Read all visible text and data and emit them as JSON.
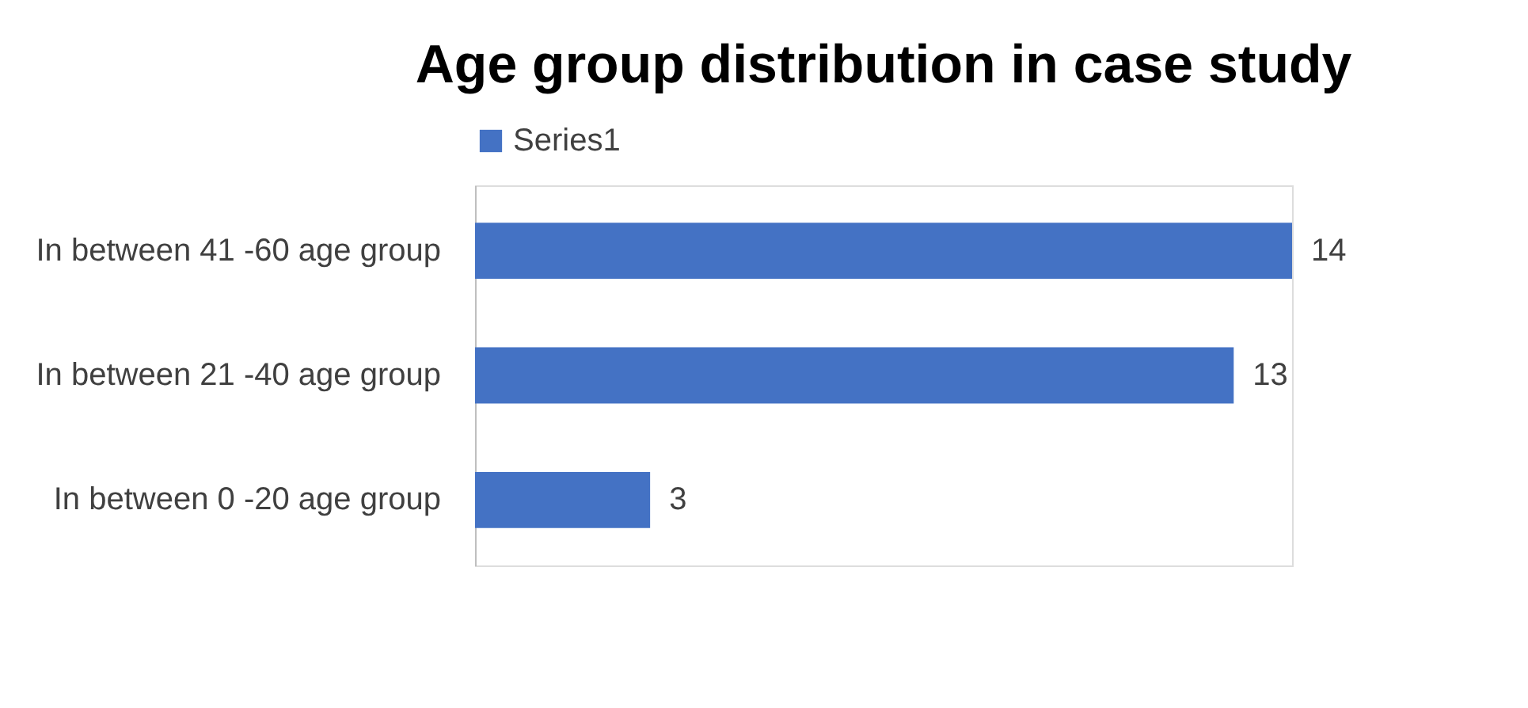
{
  "chart_data": {
    "type": "bar",
    "orientation": "horizontal",
    "title": "Age group distribution in case study",
    "categories": [
      "In between 41 -60 age group",
      "In between 21 -40 age group",
      "In between 0 -20 age group"
    ],
    "series": [
      {
        "name": "Series1",
        "color": "#4472c4",
        "values": [
          14,
          13,
          3
        ]
      }
    ],
    "data_labels": true,
    "legend": "top",
    "grid": false,
    "tick_labels": "y"
  }
}
